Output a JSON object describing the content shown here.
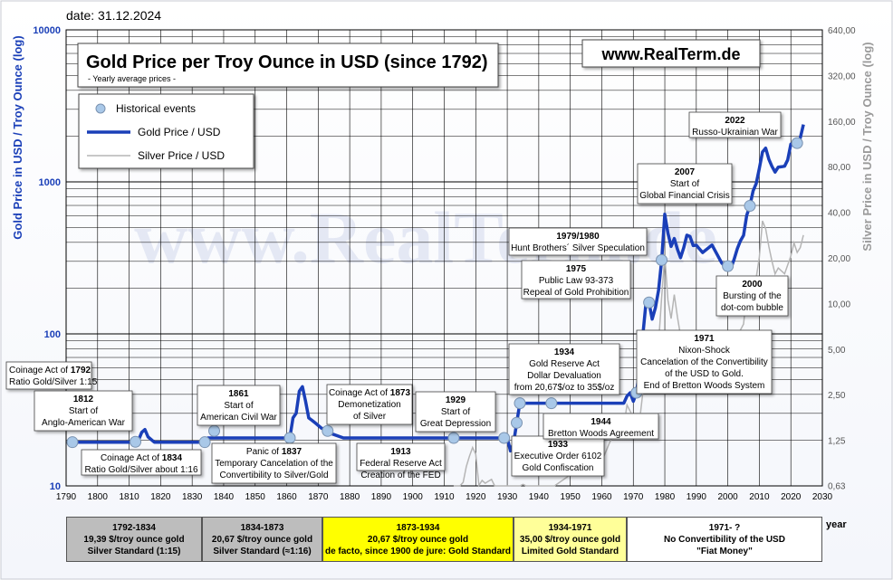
{
  "date": "date: 31.12.2024",
  "website": "www.RealTerm.de",
  "watermark": "www.RealTerm.de",
  "colors": {
    "gold": "#1a3fb8",
    "silver": "#b0b0b0",
    "marker": "#a9c8e8",
    "grid": "#000000"
  },
  "chart_data": {
    "type": "line",
    "title": "Gold Price per Troy Ounce in USD (since 1792)",
    "subtitle": "-  Yearly average prices -",
    "ylabel": "Gold Price in USD / Troy Ounce (log)",
    "y2label": "Silver Price in USD / Troy Ounce (log)",
    "xlabel": "year",
    "xlim": [
      1790,
      2030
    ],
    "ylim": [
      10,
      10000
    ],
    "y2lim": [
      0.625,
      640
    ],
    "yscale": "log",
    "grid": true,
    "legend_position": "top-left",
    "legend": [
      "Historical events",
      "Gold Price / USD",
      "Silver Price / USD"
    ],
    "x_ticks": [
      "1790",
      "1800",
      "1810",
      "1820",
      "1830",
      "1840",
      "1850",
      "1860",
      "1870",
      "1880",
      "1890",
      "1900",
      "1910",
      "1920",
      "1930",
      "1940",
      "1950",
      "1960",
      "1970",
      "1980",
      "1990",
      "2000",
      "2010",
      "2020",
      "2030"
    ],
    "y_ticks": [
      "10",
      "100",
      "1000",
      "10000"
    ],
    "y2_ticks": [
      "0,63",
      "1,25",
      "2,50",
      "5,00",
      "10,00",
      "20,00",
      "40,00",
      "80,00",
      "160,00",
      "320,00",
      "640,00"
    ],
    "series": [
      {
        "name": "Gold Price / USD",
        "x": [
          1792,
          1810,
          1812,
          1813,
          1814,
          1815,
          1816,
          1818,
          1820,
          1834,
          1835,
          1840,
          1860,
          1861,
          1862,
          1863,
          1864,
          1865,
          1866,
          1867,
          1868,
          1869,
          1870,
          1871,
          1872,
          1873,
          1878,
          1879,
          1880,
          1910,
          1916,
          1917,
          1918,
          1919,
          1920,
          1921,
          1922,
          1928,
          1929,
          1930,
          1931,
          1932,
          1933,
          1934,
          1935,
          1940,
          1945,
          1950,
          1960,
          1967,
          1968,
          1969,
          1970,
          1971,
          1972,
          1973,
          1974,
          1975,
          1976,
          1977,
          1978,
          1979,
          1980,
          1981,
          1982,
          1983,
          1984,
          1985,
          1986,
          1987,
          1988,
          1989,
          1990,
          1992,
          1995,
          1998,
          1999,
          2000,
          2001,
          2002,
          2003,
          2004,
          2005,
          2006,
          2007,
          2008,
          2009,
          2010,
          2011,
          2012,
          2013,
          2014,
          2015,
          2016,
          2017,
          2018,
          2019,
          2020,
          2021,
          2022,
          2023,
          2024
        ],
        "y": [
          19.39,
          19.39,
          19.5,
          20,
          22.5,
          23.5,
          21,
          19.39,
          19.39,
          19.39,
          20.67,
          20.67,
          20.67,
          20.67,
          28,
          30,
          42,
          45,
          36,
          28,
          27,
          26,
          25,
          24,
          23.5,
          22.5,
          20.67,
          20.67,
          20.67,
          20.67,
          20.67,
          20.67,
          20.67,
          20.67,
          20.67,
          20.67,
          20.67,
          20.67,
          20.67,
          20.67,
          17,
          19,
          26,
          35,
          35,
          35,
          35,
          35,
          35,
          35,
          39,
          41,
          36,
          41,
          58,
          97,
          159,
          161,
          125,
          148,
          193,
          306,
          612,
          460,
          376,
          424,
          360,
          317,
          368,
          446,
          437,
          381,
          383,
          343,
          384,
          294,
          279,
          279,
          271,
          310,
          363,
          409,
          445,
          603,
          695,
          871,
          972,
          1225,
          1571,
          1668,
          1411,
          1266,
          1160,
          1250,
          1257,
          1268,
          1393,
          1770,
          1800,
          1800,
          1943,
          2386
        ]
      },
      {
        "name": "Silver Price / USD",
        "x": [
          1913,
          1914,
          1915,
          1916,
          1917,
          1918,
          1919,
          1920,
          1921,
          1922,
          1923,
          1924,
          1925,
          1926,
          1927,
          1928,
          1929,
          1930,
          1931,
          1932,
          1933,
          1934,
          1935,
          1936,
          1940,
          1945,
          1950,
          1955,
          1960,
          1963,
          1964,
          1967,
          1968,
          1970,
          1971,
          1972,
          1973,
          1974,
          1975,
          1976,
          1977,
          1978,
          1979,
          1980,
          1981,
          1982,
          1983,
          1984,
          1985,
          1986,
          1990,
          1995,
          2000,
          2003,
          2004,
          2005,
          2006,
          2007,
          2008,
          2009,
          2010,
          2011,
          2012,
          2013,
          2014,
          2015,
          2016,
          2018,
          2020,
          2021,
          2022,
          2023,
          2024
        ],
        "y": [
          0.6,
          0.55,
          0.51,
          0.66,
          0.84,
          0.98,
          1.12,
          1.01,
          0.63,
          0.68,
          0.65,
          0.67,
          0.69,
          0.62,
          0.57,
          0.59,
          0.53,
          0.38,
          0.29,
          0.28,
          0.35,
          0.48,
          0.64,
          0.45,
          0.35,
          0.52,
          0.74,
          0.91,
          0.91,
          1.28,
          1.29,
          1.55,
          2.14,
          1.77,
          1.55,
          1.68,
          2.56,
          4.71,
          4.42,
          4.35,
          4.62,
          5.4,
          11.09,
          20.63,
          10.52,
          7.95,
          11.44,
          8.14,
          6.14,
          5.47,
          4.82,
          5.2,
          4.95,
          4.88,
          6.67,
          7.32,
          11.55,
          13.38,
          14.99,
          14.67,
          20.19,
          35.12,
          31.15,
          23.79,
          19.08,
          15.68,
          17.14,
          15.71,
          20.55,
          25.14,
          21.73,
          23.35,
          28.27
        ]
      }
    ],
    "events": [
      {
        "x": 1792,
        "y": 19.39,
        "bold": "1792",
        "lines": [
          "Coinage Act of ",
          "Ratio Gold/Silver 1:15"
        ]
      },
      {
        "x": 1812,
        "y": 19.5,
        "bold": "1812",
        "lines": [
          "Start of",
          "Anglo-American War"
        ]
      },
      {
        "x": 1834,
        "y": 19.39,
        "bold": "1834",
        "lines": [
          "Coinage Act of ",
          "Ratio Gold/Silver about 1:16"
        ]
      },
      {
        "x": 1837,
        "y": 23,
        "bold": "1837",
        "lines": [
          "Panic of ",
          "Temporary Cancelation of the",
          "Convertibility to Silver/Gold"
        ]
      },
      {
        "x": 1861,
        "y": 20.67,
        "bold": "1861",
        "lines": [
          "Start of",
          "American Civil War"
        ]
      },
      {
        "x": 1873,
        "y": 23,
        "bold": "1873",
        "lines": [
          "Coinage Act of ",
          "Demonetization",
          "of Silver"
        ]
      },
      {
        "x": 1913,
        "y": 20.67,
        "bold": "1913",
        "lines": [
          "Federal Reserve Act",
          "Creation of the FED"
        ]
      },
      {
        "x": 1929,
        "y": 20.67,
        "bold": "1929",
        "lines": [
          "Start of",
          "Great Depression"
        ]
      },
      {
        "x": 1933,
        "y": 26,
        "bold": "1933",
        "lines": [
          "Executive Order 6102",
          "Gold Confiscation"
        ]
      },
      {
        "x": 1934,
        "y": 35,
        "bold": "1934",
        "lines": [
          "Gold Reserve Act",
          "Dollar Devaluation",
          "from 20,67$/oz to 35$/oz"
        ]
      },
      {
        "x": 1944,
        "y": 35,
        "bold": "1944",
        "lines": [
          "Bretton Woods Agreement"
        ]
      },
      {
        "x": 1971,
        "y": 41,
        "bold": "1971",
        "lines": [
          "Nixon-Shock",
          "Cancelation of the Convertibility",
          "of the USD to Gold.",
          "End of Bretton Woods System"
        ]
      },
      {
        "x": 1975,
        "y": 161,
        "bold": "1975",
        "lines": [
          "Public Law 93-373",
          "Repeal of Gold Prohibition"
        ]
      },
      {
        "x": 1979,
        "y": 306,
        "bold": "1979/1980",
        "lines": [
          "Hunt Brothers´ Silver Speculation"
        ]
      },
      {
        "x": 2000,
        "y": 279,
        "bold": "2000",
        "lines": [
          "Bursting of the",
          "dot-com bubble"
        ]
      },
      {
        "x": 2007,
        "y": 695,
        "bold": "2007",
        "lines": [
          "Start of",
          "Global Financial Crisis"
        ]
      },
      {
        "x": 2022,
        "y": 1800,
        "bold": "2022",
        "lines": [
          "Russo-Ukrainian War"
        ]
      }
    ],
    "eras": [
      {
        "line1": "1792-1834",
        "line2": "19,39 $/troy ounce gold",
        "line3": "Silver Standard (1:15)",
        "line4": "",
        "color": "#bdbdbd"
      },
      {
        "line1": "1834-1873",
        "line2": "20,67 $/troy ounce gold",
        "line3": "Silver Standard (≈1:16)",
        "line4": "",
        "color": "#bdbdbd"
      },
      {
        "line1": "1873-1934",
        "line2": "20,67 $/troy ounce gold",
        "line3": "de facto, since 1900 de jure: Gold Standard",
        "line4": "",
        "color": "#ffff00"
      },
      {
        "line1": "1934-1971",
        "line2": "35,00 $/troy ounce gold",
        "line3": "Limited Gold Standard",
        "line4": "",
        "color": "#ffff99"
      },
      {
        "line1": "1971-  ?",
        "line2": "No Convertibility of the USD",
        "line3": "\"Fiat Money\"",
        "line4": "",
        "color": "#ffffff"
      }
    ]
  }
}
